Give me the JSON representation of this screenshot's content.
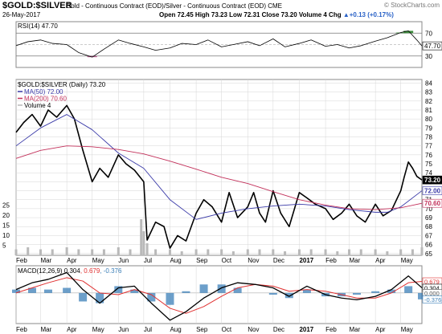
{
  "header": {
    "symbol": "$GOLD:$SILVER",
    "description": "Gold - Continuous Contract (EOD)/Silver - Continuous Contract (EOD)  CME",
    "date": "26-May-2017",
    "ohlc": "Open 72.45  High 73.23  Low 72.31  Close 73.20  Volume 4  Chg ",
    "change": "+0.13 (+0.17%)",
    "change_glyph": "▲",
    "brand": "© StockCharts.com"
  },
  "colors": {
    "price": "#000000",
    "ma50": "#3a3aa8",
    "ma200": "#c2305a",
    "volume": "#b9b9b9",
    "rsi_overbought_fill": "#3e8d3e",
    "rsi_oversold_fill": "#b05a8a",
    "macd_line": "#000000",
    "signal_line": "#e03030",
    "histogram": "#3b7fb8",
    "grid": "#d6d6d6"
  },
  "chart_data": [
    {
      "type": "line",
      "panel": "rsi",
      "legend": "RSI(14) 47.70",
      "current_value_label": "47.70",
      "ylim": [
        10,
        90
      ],
      "y_ticks": [
        "30",
        "50",
        "70"
      ],
      "reference_lines": [
        30,
        70
      ],
      "x": [
        "2016-02-01",
        "2016-02-15",
        "2016-03-01",
        "2016-03-15",
        "2016-04-01",
        "2016-04-15",
        "2016-05-01",
        "2016-05-15",
        "2016-06-01",
        "2016-06-15",
        "2016-07-01",
        "2016-07-15",
        "2016-08-01",
        "2016-08-15",
        "2016-09-01",
        "2016-09-15",
        "2016-10-01",
        "2016-10-15",
        "2016-11-01",
        "2016-11-15",
        "2016-12-01",
        "2016-12-15",
        "2017-01-01",
        "2017-01-15",
        "2017-02-01",
        "2017-02-15",
        "2017-03-01",
        "2017-03-15",
        "2017-04-01",
        "2017-04-15",
        "2017-05-01",
        "2017-05-10",
        "2017-05-20",
        "2017-05-26"
      ],
      "values": [
        48,
        55,
        58,
        52,
        50,
        36,
        28,
        42,
        58,
        52,
        46,
        40,
        44,
        52,
        50,
        58,
        46,
        50,
        55,
        48,
        60,
        46,
        52,
        58,
        47,
        50,
        44,
        48,
        56,
        62,
        71,
        74,
        58,
        47.7
      ]
    },
    {
      "type": "line",
      "panel": "price",
      "title": "$GOLD:$SILVER (Daily) 73.20",
      "ylim": [
        64.8,
        84.4
      ],
      "y_ticks": [
        "65",
        "66",
        "67",
        "68",
        "69",
        "70",
        "71",
        "72",
        "73",
        "74",
        "75",
        "76",
        "77",
        "78",
        "79",
        "80",
        "81",
        "82",
        "83",
        "84"
      ],
      "x_ticks": [
        "Feb",
        "Mar",
        "Apr",
        "May",
        "Jun",
        "Jul",
        "Aug",
        "Sep",
        "Oct",
        "Nov",
        "Dec",
        "2017",
        "Feb",
        "Mar",
        "Apr",
        "May"
      ],
      "last_value_labels": [
        "73.20",
        "72.00",
        "70.60"
      ],
      "series": [
        {
          "name": "$GOLD:$SILVER (Daily) 73.20",
          "key": "price",
          "x": [
            "2016-02-01",
            "2016-02-10",
            "2016-02-20",
            "2016-03-01",
            "2016-03-10",
            "2016-03-20",
            "2016-04-01",
            "2016-04-10",
            "2016-04-20",
            "2016-05-01",
            "2016-05-10",
            "2016-05-20",
            "2016-06-01",
            "2016-06-10",
            "2016-06-20",
            "2016-07-01",
            "2016-07-05",
            "2016-07-15",
            "2016-07-25",
            "2016-08-01",
            "2016-08-10",
            "2016-08-20",
            "2016-09-01",
            "2016-09-10",
            "2016-09-20",
            "2016-10-01",
            "2016-10-10",
            "2016-10-20",
            "2016-11-01",
            "2016-11-08",
            "2016-11-15",
            "2016-11-22",
            "2016-12-01",
            "2016-12-10",
            "2016-12-20",
            "2017-01-01",
            "2017-01-10",
            "2017-01-20",
            "2017-02-01",
            "2017-02-10",
            "2017-02-20",
            "2017-03-01",
            "2017-03-10",
            "2017-03-20",
            "2017-04-01",
            "2017-04-10",
            "2017-04-20",
            "2017-05-01",
            "2017-05-05",
            "2017-05-10",
            "2017-05-15",
            "2017-05-20",
            "2017-05-26"
          ],
          "values": [
            78.5,
            79.6,
            80.5,
            79.2,
            81.0,
            80.2,
            81.5,
            80.0,
            76.5,
            73.0,
            74.5,
            73.5,
            76.0,
            75.0,
            74.3,
            73.0,
            66.5,
            68.5,
            68.0,
            65.6,
            67.0,
            66.4,
            69.5,
            71.0,
            70.2,
            68.5,
            71.8,
            69.0,
            70.2,
            71.8,
            69.5,
            68.5,
            72.0,
            69.5,
            68.0,
            71.8,
            71.2,
            70.5,
            70.0,
            68.8,
            69.5,
            70.5,
            69.2,
            68.5,
            70.5,
            69.2,
            69.8,
            72.0,
            73.5,
            75.2,
            74.5,
            73.6,
            73.2
          ]
        },
        {
          "name": "MA(50) 72.00",
          "key": "ma50",
          "x": [
            "2016-02-01",
            "2016-03-01",
            "2016-04-01",
            "2016-05-01",
            "2016-06-01",
            "2016-07-01",
            "2016-08-01",
            "2016-09-01",
            "2016-10-01",
            "2016-11-01",
            "2016-12-01",
            "2017-01-01",
            "2017-02-01",
            "2017-03-01",
            "2017-04-01",
            "2017-04-15",
            "2017-05-01",
            "2017-05-26"
          ],
          "values": [
            77.0,
            79.0,
            80.5,
            78.8,
            76.2,
            74.5,
            71.0,
            68.8,
            69.5,
            70.0,
            70.3,
            70.5,
            70.3,
            69.9,
            69.6,
            69.6,
            70.2,
            72.0
          ]
        },
        {
          "name": "MA(200) 70.60",
          "key": "ma200",
          "x": [
            "2016-02-01",
            "2016-03-01",
            "2016-04-01",
            "2016-05-01",
            "2016-06-01",
            "2016-07-01",
            "2016-08-01",
            "2016-09-01",
            "2016-10-01",
            "2016-11-01",
            "2016-12-01",
            "2017-01-01",
            "2017-02-01",
            "2017-03-01",
            "2017-04-01",
            "2017-05-01",
            "2017-05-26"
          ],
          "values": [
            75.6,
            76.5,
            77.0,
            76.9,
            76.6,
            76.1,
            75.3,
            74.4,
            73.5,
            72.8,
            71.9,
            71.0,
            70.4,
            70.0,
            69.9,
            70.1,
            70.6
          ]
        }
      ]
    },
    {
      "type": "bar",
      "panel": "volume",
      "legend": "Volume 4",
      "y_ticks": [
        "5",
        "10",
        "15",
        "20",
        "25"
      ],
      "note": "thin daily volume bars near 2-4, with spikes around early July 2016",
      "x": [
        "2016-02-01",
        "2016-02-15",
        "2016-03-01",
        "2016-03-15",
        "2016-04-01",
        "2016-04-15",
        "2016-05-01",
        "2016-05-15",
        "2016-06-01",
        "2016-06-15",
        "2016-06-28",
        "2016-07-01",
        "2016-07-05",
        "2016-07-15",
        "2016-08-01",
        "2016-08-15",
        "2016-09-01",
        "2016-09-15",
        "2016-10-01",
        "2016-10-15",
        "2016-11-01",
        "2016-11-15",
        "2016-12-01",
        "2016-12-15",
        "2017-01-01",
        "2017-01-15",
        "2017-02-01",
        "2017-02-15",
        "2017-03-01",
        "2017-03-15",
        "2017-04-01",
        "2017-04-15",
        "2017-05-01",
        "2017-05-15",
        "2017-05-26"
      ],
      "values": [
        3,
        4,
        3,
        3,
        4,
        3,
        3,
        3,
        4,
        3,
        18,
        12,
        6,
        3,
        3,
        2,
        3,
        3,
        3,
        2,
        3,
        3,
        3,
        2,
        3,
        3,
        3,
        2,
        3,
        3,
        3,
        2,
        3,
        3,
        4
      ]
    },
    {
      "type": "line",
      "panel": "macd",
      "legend_prefix": "MACD(12,26,9) ",
      "legend_values": [
        "0.304",
        "0.679",
        "-0.376"
      ],
      "current_value_labels": [
        "0.679",
        "0.304",
        "0.000",
        "-0.376"
      ],
      "ylim": [
        -1.8,
        1.6
      ],
      "series": [
        {
          "name": "MACD(12,26,9) 0.304",
          "key": "macd",
          "x": [
            "2016-02-01",
            "2016-02-20",
            "2016-03-10",
            "2016-04-01",
            "2016-04-20",
            "2016-05-10",
            "2016-06-01",
            "2016-06-20",
            "2016-07-10",
            "2016-08-01",
            "2016-08-20",
            "2016-09-10",
            "2016-10-01",
            "2016-10-20",
            "2016-11-10",
            "2016-12-01",
            "2016-12-20",
            "2017-01-10",
            "2017-02-01",
            "2017-02-20",
            "2017-03-10",
            "2017-04-01",
            "2017-04-20",
            "2017-05-10",
            "2017-05-26"
          ],
          "values": [
            0.2,
            0.6,
            0.8,
            1.2,
            0.2,
            -0.6,
            0.3,
            0.4,
            -0.6,
            -1.6,
            -1.1,
            -0.3,
            0.3,
            0.6,
            0.5,
            0.3,
            -0.2,
            0.4,
            -0.1,
            -0.3,
            -0.4,
            -0.2,
            0.2,
            1.0,
            0.304
          ]
        },
        {
          "name": "0.679",
          "key": "signal",
          "x": [
            "2016-02-01",
            "2016-02-20",
            "2016-03-10",
            "2016-04-01",
            "2016-04-20",
            "2016-05-10",
            "2016-06-01",
            "2016-06-20",
            "2016-07-10",
            "2016-08-01",
            "2016-08-20",
            "2016-09-10",
            "2016-10-01",
            "2016-10-20",
            "2016-11-10",
            "2016-12-01",
            "2016-12-20",
            "2017-01-10",
            "2017-02-01",
            "2017-02-20",
            "2017-03-10",
            "2017-04-01",
            "2017-04-20",
            "2017-05-10",
            "2017-05-26"
          ],
          "values": [
            0.0,
            0.3,
            0.6,
            0.9,
            0.7,
            0.0,
            -0.1,
            0.2,
            -0.1,
            -0.9,
            -1.2,
            -0.8,
            -0.2,
            0.3,
            0.5,
            0.4,
            0.1,
            0.2,
            0.1,
            -0.1,
            -0.3,
            -0.3,
            0.0,
            0.6,
            0.679
          ]
        },
        {
          "name": "-0.376",
          "key": "histogram",
          "x": [
            "2016-02-01",
            "2016-02-20",
            "2016-03-10",
            "2016-04-01",
            "2016-04-20",
            "2016-05-10",
            "2016-06-01",
            "2016-06-20",
            "2016-07-10",
            "2016-08-01",
            "2016-08-20",
            "2016-09-10",
            "2016-10-01",
            "2016-10-20",
            "2016-11-10",
            "2016-12-01",
            "2016-12-20",
            "2017-01-10",
            "2017-02-01",
            "2017-02-20",
            "2017-03-10",
            "2017-04-01",
            "2017-04-20",
            "2017-05-10",
            "2017-05-26"
          ],
          "values": [
            0.2,
            0.3,
            0.2,
            0.3,
            -0.5,
            -0.6,
            0.4,
            0.2,
            -0.5,
            -0.7,
            0.1,
            0.5,
            0.5,
            0.3,
            0.0,
            -0.1,
            -0.3,
            0.2,
            -0.2,
            -0.2,
            -0.1,
            0.1,
            0.2,
            0.4,
            -0.376
          ]
        }
      ]
    }
  ]
}
